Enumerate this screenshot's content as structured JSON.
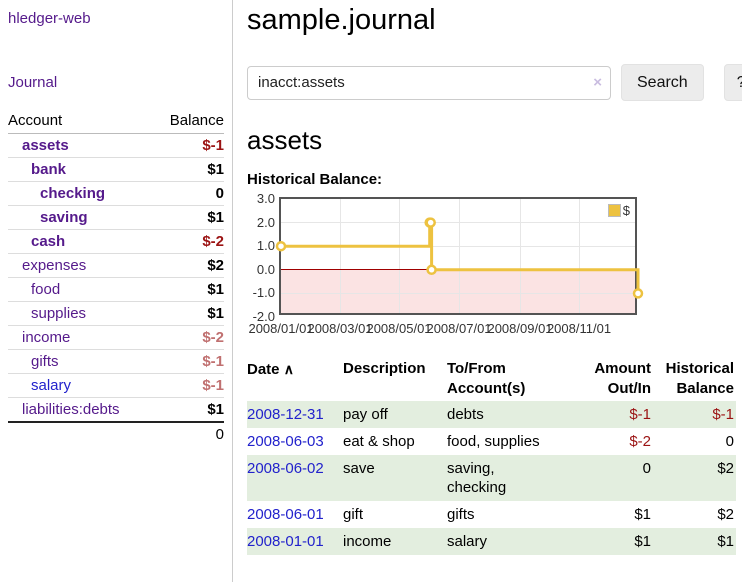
{
  "app": {
    "brand": "hledger-web"
  },
  "sidebar": {
    "nav_journal": "Journal",
    "header": {
      "account": "Account",
      "balance": "Balance"
    },
    "accounts": [
      {
        "name": "assets",
        "balance": "$-1"
      },
      {
        "name": "bank",
        "balance": "$1"
      },
      {
        "name": "checking",
        "balance": "0"
      },
      {
        "name": "saving",
        "balance": "$1"
      },
      {
        "name": "cash",
        "balance": "$-2"
      },
      {
        "name": "expenses",
        "balance": "$2"
      },
      {
        "name": "food",
        "balance": "$1"
      },
      {
        "name": "supplies",
        "balance": "$1"
      },
      {
        "name": "income",
        "balance": "$-2"
      },
      {
        "name": "gifts",
        "balance": "$-1"
      },
      {
        "name": "salary",
        "balance": "$-1"
      },
      {
        "name": "liabilities:debts",
        "balance": "$1"
      }
    ],
    "total": "0"
  },
  "main": {
    "title": "sample.journal",
    "search": {
      "value": "inacct:assets",
      "clear_icon": "×",
      "button": "Search",
      "help": "?"
    },
    "account_title": "assets",
    "chart_label": "Historical Balance:"
  },
  "chart_data": {
    "type": "line",
    "title": "Historical Balance",
    "step": true,
    "xlim": [
      "2008-01-01",
      "2009-01-01"
    ],
    "ylim": [
      -2,
      3
    ],
    "y_ticks": [
      "3.0",
      "2.0",
      "1.0",
      "0.0",
      "-1.0",
      "-2.0"
    ],
    "x_ticks": [
      "2008/01/01",
      "2008/03/01",
      "2008/05/01",
      "2008/07/01",
      "2008/09/01",
      "2008/11/01"
    ],
    "grid": true,
    "legend_position": "top-right",
    "series": [
      {
        "name": "$",
        "color": "#edc240",
        "points": [
          [
            "2008-01-01",
            1
          ],
          [
            "2008-06-01",
            2
          ],
          [
            "2008-06-02",
            2
          ],
          [
            "2008-06-03",
            0
          ],
          [
            "2008-12-31",
            -1
          ]
        ]
      }
    ],
    "negative_region_color": "#fbe3e3",
    "zero_line_color": "#a00000"
  },
  "register": {
    "sort_icon": "∧",
    "headers": {
      "date": "Date",
      "description": "Description",
      "accounts": "To/From\nAccount(s)",
      "amount": "Amount\nOut/In",
      "balance": "Historical\nBalance"
    },
    "rows": [
      {
        "date": "2008-12-31",
        "description": "pay off",
        "accounts": "debts",
        "amount": "$-1",
        "balance": "$-1"
      },
      {
        "date": "2008-06-03",
        "description": "eat & shop",
        "accounts": "food, supplies",
        "amount": "$-2",
        "balance": "0"
      },
      {
        "date": "2008-06-02",
        "description": "save",
        "accounts": "saving,\nchecking",
        "amount": "0",
        "balance": "$2"
      },
      {
        "date": "2008-06-01",
        "description": "gift",
        "accounts": "gifts",
        "amount": "$1",
        "balance": "$2"
      },
      {
        "date": "2008-01-01",
        "description": "income",
        "accounts": "salary",
        "amount": "$1",
        "balance": "$1"
      }
    ]
  },
  "colors": {
    "link_purple": "#551a8b",
    "link_blue": "#2222cc",
    "negative_strong": "#9b1313",
    "negative_soft": "#c07070",
    "row_green": "#e3eedf",
    "chart_line": "#edc240",
    "chart_border": "#545454"
  }
}
